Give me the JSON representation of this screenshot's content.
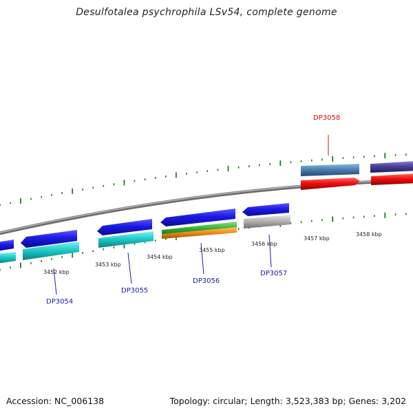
{
  "title": "Desulfotalea psychrophila LSv54, complete genome",
  "footer": {
    "accession": "Accession: NC_006138",
    "summary": "Topology: circular; Length: 3,523,383 bp; Genes: 3,202"
  },
  "scale_labels": [
    "3452 kbp",
    "3453 kbp",
    "3454 kbp",
    "3455 kbp",
    "3456 kbp",
    "3457 kbp",
    "3458 kbp"
  ],
  "gene_labels": [
    {
      "text": "DP3054",
      "color": "#1a1aa6"
    },
    {
      "text": "DP3055",
      "color": "#1a1aa6"
    },
    {
      "text": "DP3056",
      "color": "#1a1aa6"
    },
    {
      "text": "DP3057",
      "color": "#1a1aa6"
    },
    {
      "text": "DP3058",
      "color": "#cc1111"
    }
  ],
  "colors": {
    "backbone": "#8a8a8a",
    "tick": "#1f7a1f",
    "cds_blue": "#1a1ad9",
    "cyan": "#1fc9c9",
    "green": "#3cb83c",
    "orange": "#f0901a",
    "grey": "#b3b3b3",
    "steel": "#4a80b3",
    "red": "#f01010",
    "navy": "#4a3f9a"
  }
}
